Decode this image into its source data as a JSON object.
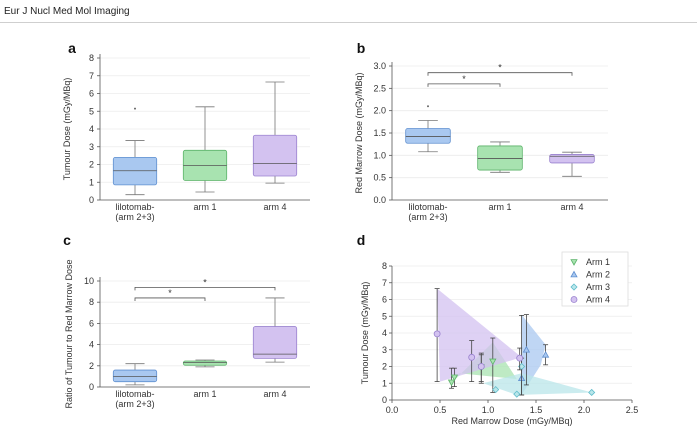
{
  "header": {
    "journal": "Eur J Nucl Med Mol Imaging"
  },
  "colors": {
    "arm_2_3": "#a9c8f0",
    "arm_1": "#a8e3b0",
    "arm_4": "#d3c2f0",
    "arm_3": "#b9e6ea",
    "stroke_2_3": "#5f8fcf",
    "stroke_1": "#5cb36a",
    "stroke_4": "#9a82cf",
    "stroke_3": "#5fbccb"
  },
  "chart_data": [
    {
      "panel": "a",
      "type": "box",
      "categories": [
        "lilotomab-\n(arm 2+3)",
        "arm 1",
        "arm 4"
      ],
      "ylabel": "Tumour Dose (mGy/MBq)",
      "ylim": [
        0,
        8
      ],
      "yticks": [
        0,
        1,
        2,
        3,
        4,
        5,
        6,
        7,
        8
      ],
      "boxes": [
        {
          "min": 0.3,
          "q1": 0.85,
          "median": 1.65,
          "q3": 2.4,
          "max": 3.35,
          "outliers": [
            5.15
          ]
        },
        {
          "min": 0.45,
          "q1": 1.1,
          "median": 1.95,
          "q3": 2.8,
          "max": 5.25,
          "outliers": []
        },
        {
          "min": 0.95,
          "q1": 1.35,
          "median": 2.05,
          "q3": 3.65,
          "max": 6.65,
          "outliers": []
        }
      ]
    },
    {
      "panel": "b",
      "type": "box",
      "categories": [
        "lilotomab-\n(arm 2+3)",
        "arm 1",
        "arm 4"
      ],
      "ylabel": "Red Marrow Dose (mGy/MBq)",
      "ylim": [
        0,
        3
      ],
      "yticks": [
        0.0,
        0.5,
        1.0,
        1.5,
        2.0,
        2.5,
        3.0
      ],
      "boxes": [
        {
          "min": 1.08,
          "q1": 1.27,
          "median": 1.42,
          "q3": 1.6,
          "max": 1.78,
          "outliers": [
            2.1
          ]
        },
        {
          "min": 0.62,
          "q1": 0.67,
          "median": 0.93,
          "q3": 1.21,
          "max": 1.3,
          "outliers": []
        },
        {
          "min": 0.53,
          "q1": 0.83,
          "median": 0.98,
          "q3": 1.02,
          "max": 1.07,
          "outliers": []
        }
      ],
      "significance": [
        {
          "from": 0,
          "to": 1,
          "y": 2.6,
          "label": "*"
        },
        {
          "from": 0,
          "to": 2,
          "y": 2.85,
          "label": "*"
        }
      ]
    },
    {
      "panel": "c",
      "type": "box",
      "categories": [
        "lilotomab-\n(arm 2+3)",
        "arm 1",
        "arm 4"
      ],
      "ylabel": "Ratio of Tumour to Red Marrow Dose",
      "ylim": [
        0,
        10
      ],
      "yticks": [
        0,
        2,
        4,
        6,
        8,
        10
      ],
      "boxes": [
        {
          "min": 0.2,
          "q1": 0.5,
          "median": 1.0,
          "q3": 1.6,
          "max": 2.2,
          "outliers": []
        },
        {
          "min": 1.9,
          "q1": 2.05,
          "median": 2.3,
          "q3": 2.45,
          "max": 2.55,
          "outliers": []
        },
        {
          "min": 2.35,
          "q1": 2.7,
          "median": 3.1,
          "q3": 5.7,
          "max": 8.4,
          "outliers": []
        }
      ],
      "significance": [
        {
          "from": 0,
          "to": 1,
          "y": 8.4,
          "label": "*"
        },
        {
          "from": 0,
          "to": 2,
          "y": 9.4,
          "label": "*"
        }
      ]
    },
    {
      "panel": "d",
      "type": "scatter",
      "xlabel": "Red Marrow Dose (mGy/MBq)",
      "ylabel": "Tumour Dose (mGy/MBq)",
      "xlim": [
        0,
        2.5
      ],
      "ylim": [
        0,
        8
      ],
      "xticks": [
        0.0,
        0.5,
        1.0,
        1.5,
        2.0,
        2.5
      ],
      "yticks": [
        0,
        1,
        2,
        3,
        4,
        5,
        6,
        7,
        8
      ],
      "legend_position": "top-right",
      "series": [
        {
          "name": "Arm 1",
          "marker": "triangle-down",
          "points": [
            {
              "x": 0.62,
              "y": 1.05,
              "ylo": 0.7,
              "yhi": 1.9
            },
            {
              "x": 0.65,
              "y": 1.35,
              "ylo": 0.8,
              "yhi": 1.9
            },
            {
              "x": 0.93,
              "y": 1.95,
              "ylo": 1.1,
              "yhi": 2.8
            },
            {
              "x": 1.05,
              "y": 2.3,
              "ylo": 0.45,
              "yhi": 3.7
            }
          ],
          "hull": [
            [
              0.6,
              0.9
            ],
            [
              1.05,
              3.45
            ],
            [
              1.3,
              1.25
            ],
            [
              0.7,
              1.6
            ]
          ]
        },
        {
          "name": "Arm 2",
          "marker": "triangle-up",
          "points": [
            {
              "x": 1.35,
              "y": 1.3,
              "ylo": 0.3,
              "yhi": 2.5
            },
            {
              "x": 1.6,
              "y": 2.7,
              "ylo": 2.1,
              "yhi": 3.3
            },
            {
              "x": 1.4,
              "y": 3.0,
              "ylo": 0.9,
              "yhi": 5.1
            }
          ],
          "hull": [
            [
              1.35,
              5.1
            ],
            [
              1.6,
              3.3
            ],
            [
              1.55,
              2.1
            ],
            [
              1.35,
              0.3
            ]
          ]
        },
        {
          "name": "Arm 3",
          "marker": "diamond",
          "points": [
            {
              "x": 1.35,
              "y": 2.0,
              "ylo": 0.3,
              "yhi": 5.05
            },
            {
              "x": 1.08,
              "y": 0.62,
              "ylo": 0.62,
              "yhi": 0.62
            },
            {
              "x": 1.3,
              "y": 0.35,
              "ylo": 0.35,
              "yhi": 0.35
            },
            {
              "x": 2.08,
              "y": 0.45,
              "ylo": 0.45,
              "yhi": 0.45
            }
          ],
          "hull": [
            [
              0.95,
              1.0
            ],
            [
              1.35,
              1.6
            ],
            [
              2.08,
              0.45
            ],
            [
              1.3,
              0.3
            ]
          ]
        },
        {
          "name": "Arm 4",
          "marker": "circle",
          "points": [
            {
              "x": 0.47,
              "y": 3.95,
              "ylo": 1.1,
              "yhi": 6.65
            },
            {
              "x": 0.83,
              "y": 2.55,
              "ylo": 1.1,
              "yhi": 3.55
            },
            {
              "x": 0.93,
              "y": 2.0,
              "ylo": 1.0,
              "yhi": 2.7
            },
            {
              "x": 1.33,
              "y": 2.5,
              "ylo": 1.8,
              "yhi": 3.1
            }
          ],
          "hull": [
            [
              0.47,
              6.65
            ],
            [
              1.35,
              2.55
            ],
            [
              0.5,
              1.1
            ]
          ]
        }
      ]
    }
  ]
}
